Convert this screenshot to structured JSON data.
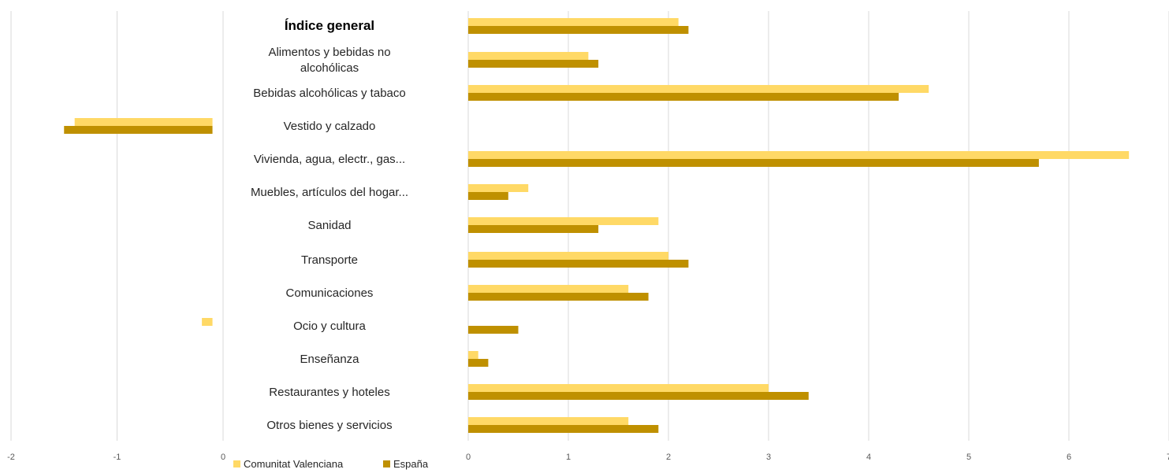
{
  "chart_data": {
    "type": "bar",
    "orientation": "horizontal",
    "grid": true,
    "legend_position": "bottom-left",
    "categories": [
      "Índice general",
      "Alimentos y bebidas no alcohólicas",
      "Bebidas alcohólicas y tabaco",
      "Vestido y calzado",
      "Vivienda, agua, electr., gas...",
      "Muebles, artículos del hogar...",
      "Sanidad",
      "Transporte",
      "Comunicaciones",
      "Ocio y cultura",
      "Enseñanza",
      "Restaurantes y hoteles",
      "Otros bienes y servicios"
    ],
    "category_lines": [
      [
        "Índice general"
      ],
      [
        "Alimentos y bebidas no",
        "alcohólicas"
      ],
      [
        "Bebidas alcohólicas y tabaco"
      ],
      [
        "Vestido y calzado"
      ],
      [
        "Vivienda, agua, electr., gas..."
      ],
      [
        "Muebles, artículos del hogar..."
      ],
      [
        "Sanidad"
      ],
      [
        "Transporte"
      ],
      [
        "Comunicaciones"
      ],
      [
        "Ocio y cultura"
      ],
      [
        "Enseñanza"
      ],
      [
        "Restaurantes y hoteles"
      ],
      [
        "Otros bienes y servicios"
      ]
    ],
    "series": [
      {
        "name": "Comunitat Valenciana",
        "color": "#FFD966",
        "values": [
          2.1,
          1.2,
          4.6,
          -1.4,
          6.6,
          0.6,
          1.9,
          2.0,
          1.6,
          -0.2,
          0.1,
          3.0,
          1.6
        ]
      },
      {
        "name": "España",
        "color": "#BF9000",
        "values": [
          2.2,
          1.3,
          4.3,
          -1.5,
          5.7,
          0.4,
          1.3,
          2.2,
          1.8,
          0.5,
          0.2,
          3.4,
          1.9
        ]
      }
    ],
    "left_axis": {
      "ticks": [
        "-2",
        "-1",
        "0"
      ],
      "range": [
        -2,
        0
      ]
    },
    "right_axis": {
      "ticks": [
        "0",
        "1",
        "2",
        "3",
        "4",
        "5",
        "6",
        "7"
      ],
      "range": [
        0,
        7
      ]
    },
    "xlabel": "",
    "ylabel": ""
  }
}
